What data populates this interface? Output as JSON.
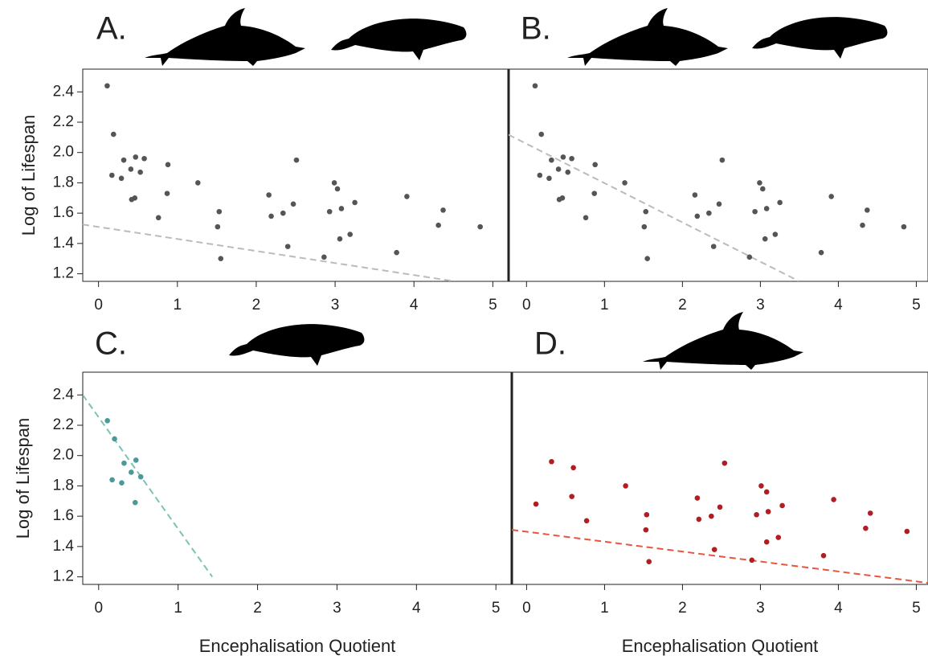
{
  "chart_data": [
    {
      "type": "scatter",
      "label": "A.",
      "y_label": "Log of Lifespan",
      "color": "#555555",
      "x": [
        0.11,
        0.19,
        0.17,
        0.29,
        0.32,
        0.41,
        0.47,
        0.53,
        0.58,
        0.42,
        0.46,
        0.76,
        0.88,
        0.87,
        1.26,
        1.53,
        1.51,
        1.55,
        2.16,
        2.19,
        2.34,
        2.47,
        2.4,
        2.51,
        2.99,
        3.03,
        2.93,
        3.08,
        3.06,
        3.19,
        3.25,
        2.86,
        3.78,
        3.91,
        4.31,
        4.37,
        4.84
      ],
      "y": [
        2.44,
        2.12,
        1.85,
        1.83,
        1.95,
        1.89,
        1.97,
        1.87,
        1.96,
        1.69,
        1.7,
        1.57,
        1.92,
        1.73,
        1.8,
        1.61,
        1.51,
        1.3,
        1.72,
        1.58,
        1.6,
        1.66,
        1.38,
        1.95,
        1.8,
        1.76,
        1.61,
        1.63,
        1.43,
        1.46,
        1.67,
        1.31,
        1.34,
        1.71,
        1.52,
        1.62,
        1.51
      ],
      "fit": {
        "x": [
          -0.2,
          4.52
        ],
        "y": [
          1.525,
          1.15
        ],
        "color": "#bbbbbb"
      },
      "xlim": [
        -0.2,
        5.2
      ],
      "ylim": [
        1.15,
        2.55
      ],
      "xticks": [
        0,
        1,
        2,
        3,
        4,
        5
      ],
      "yticks": [
        1.2,
        1.4,
        1.6,
        1.8,
        {
          "value": 2,
          "label": "2.0"
        },
        2.2,
        2.4
      ]
    },
    {
      "type": "scatter",
      "label": "B.",
      "color": "#555555",
      "x": [
        0.11,
        0.19,
        0.17,
        0.29,
        0.32,
        0.41,
        0.47,
        0.53,
        0.58,
        0.42,
        0.46,
        0.76,
        0.88,
        0.87,
        1.26,
        1.53,
        1.51,
        1.55,
        2.16,
        2.19,
        2.34,
        2.47,
        2.4,
        2.51,
        2.99,
        3.03,
        2.93,
        3.08,
        3.06,
        3.19,
        3.25,
        2.86,
        3.78,
        3.91,
        4.31,
        4.37,
        4.84
      ],
      "y": [
        2.44,
        2.12,
        1.85,
        1.83,
        1.95,
        1.89,
        1.97,
        1.87,
        1.96,
        1.69,
        1.7,
        1.57,
        1.92,
        1.73,
        1.8,
        1.61,
        1.51,
        1.3,
        1.72,
        1.58,
        1.6,
        1.66,
        1.38,
        1.95,
        1.8,
        1.76,
        1.61,
        1.63,
        1.43,
        1.46,
        1.67,
        1.31,
        1.34,
        1.71,
        1.52,
        1.62,
        1.51
      ],
      "fit": {
        "x": [
          -0.23,
          3.5
        ],
        "y": [
          2.117,
          1.15
        ],
        "color": "#bbbbbb"
      },
      "xlim": [
        -0.23,
        5.15
      ],
      "ylim": [
        1.15,
        2.55
      ],
      "xticks": [
        0,
        1,
        2,
        3,
        4,
        5
      ]
    },
    {
      "type": "scatter",
      "label": "C.",
      "y_label": "Log of Lifespan",
      "x_label": "Encephalisation Quotient",
      "color": "#4a9a9a",
      "x": [
        0.11,
        0.2,
        0.17,
        0.29,
        0.32,
        0.41,
        0.47,
        0.53,
        0.46
      ],
      "y": [
        2.23,
        2.11,
        1.84,
        1.82,
        1.95,
        1.89,
        1.97,
        1.86,
        1.69
      ],
      "fit": {
        "x": [
          -0.2,
          1.43
        ],
        "y": [
          2.4,
          1.2
        ],
        "color": "#7cc4b0"
      },
      "xlim": [
        -0.2,
        5.2
      ],
      "ylim": [
        1.15,
        2.55
      ],
      "xticks": [
        0,
        1,
        2,
        3,
        4,
        5
      ],
      "yticks": [
        1.2,
        1.4,
        1.6,
        1.8,
        {
          "value": 2,
          "label": "2.0"
        },
        2.2,
        2.4
      ]
    },
    {
      "type": "scatter",
      "label": "D.",
      "x_label": "Encephalisation Quotient",
      "color": "#b01e24",
      "x": [
        0.12,
        0.32,
        0.6,
        0.58,
        0.77,
        1.27,
        1.54,
        1.53,
        1.57,
        2.19,
        2.21,
        2.37,
        2.48,
        2.41,
        2.54,
        3.01,
        3.08,
        2.95,
        3.1,
        3.08,
        3.23,
        3.28,
        2.89,
        3.81,
        3.94,
        4.35,
        4.41,
        4.88
      ],
      "y": [
        1.68,
        1.96,
        1.92,
        1.73,
        1.57,
        1.8,
        1.61,
        1.51,
        1.3,
        1.72,
        1.58,
        1.6,
        1.66,
        1.38,
        1.95,
        1.8,
        1.76,
        1.61,
        1.63,
        1.43,
        1.46,
        1.67,
        1.31,
        1.34,
        1.71,
        1.52,
        1.62,
        1.5
      ],
      "fit": {
        "x": [
          -0.19,
          5.15
        ],
        "y": [
          1.51,
          1.16
        ],
        "color": "#e8553d"
      },
      "xlim": [
        -0.19,
        5.15
      ],
      "ylim": [
        1.15,
        2.55
      ],
      "xticks": [
        0,
        1,
        2,
        3,
        4,
        5
      ]
    }
  ]
}
